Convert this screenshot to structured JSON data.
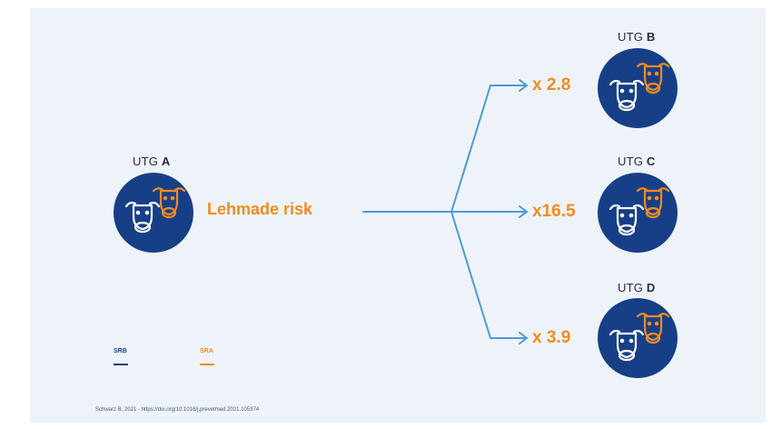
{
  "colors": {
    "navy": "#173f87",
    "orange": "#f08c1e",
    "arrow": "#4d9bd6",
    "panel": "#eef3fa"
  },
  "origin": {
    "label_prefix": "UTG",
    "label_letter": "A",
    "risk_label": "Lehmade risk"
  },
  "targets": [
    {
      "label_prefix": "UTG",
      "label_letter": "B",
      "multiplier": "x 2.8"
    },
    {
      "label_prefix": "UTG",
      "label_letter": "C",
      "multiplier": "x16.5"
    },
    {
      "label_prefix": "UTG",
      "label_letter": "D",
      "multiplier": "x 3.9"
    }
  ],
  "legend": [
    {
      "label": "SRB",
      "color": "#173f87"
    },
    {
      "label": "SRA",
      "color": "#f08c1e"
    }
  ],
  "source": "Schwarz B, 2021 - https://doi.org/10.1016/j.prevetmed.2021.105374"
}
